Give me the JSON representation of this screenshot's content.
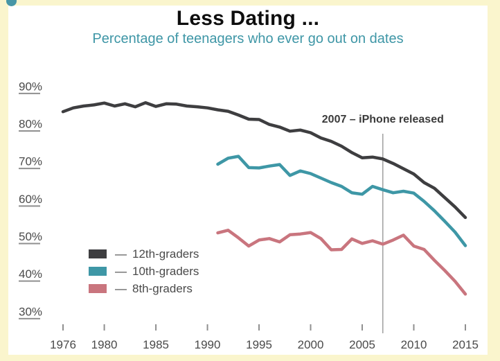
{
  "colors": {
    "background": "#FAF5CD",
    "canvas": "#FFFFFF",
    "title": "#0E0E0E",
    "subtitle": "#3E96A6",
    "axis_text": "#4A4A4A",
    "tick": "#8F8F8F",
    "annotation_line": "#8C8C8C",
    "annotation_text": "#3B3B3B",
    "logo_dot": "#4796A6"
  },
  "legend": {
    "dash": "—",
    "position": "inside-bottom-left"
  },
  "chart_data": {
    "type": "line",
    "title": "Less Dating ...",
    "subtitle": "Percentage of teenagers who ever go out on dates",
    "xlabel": "",
    "ylabel": "",
    "xlim": [
      1976,
      2015
    ],
    "ylim": [
      30,
      90
    ],
    "grid": false,
    "x_ticks": [
      1976,
      1980,
      1985,
      1990,
      1995,
      2000,
      2005,
      2010,
      2015
    ],
    "y_ticks": [
      90,
      80,
      70,
      60,
      50,
      40,
      30
    ],
    "y_tick_labels": [
      "90%",
      "80%",
      "70%",
      "60%",
      "50%",
      "40%",
      "30%"
    ],
    "annotation": {
      "x": 2007,
      "label": "2007 – iPhone released"
    },
    "series": [
      {
        "name": "12th-graders",
        "color": "#3E3E40",
        "x_start": 1976,
        "x_step": 1,
        "values": [
          83.2,
          84.2,
          84.7,
          85.0,
          85.5,
          84.7,
          85.3,
          84.5,
          85.6,
          84.6,
          85.3,
          85.2,
          84.7,
          84.5,
          84.2,
          83.7,
          83.3,
          82.3,
          81.2,
          81.1,
          79.8,
          79.1,
          78.0,
          78.3,
          77.6,
          76.2,
          75.3,
          74.0,
          72.3,
          70.9,
          71.1,
          70.6,
          69.4,
          68.0,
          66.6,
          64.3,
          62.8,
          60.3,
          57.8,
          55.0
        ]
      },
      {
        "name": "10th-graders",
        "color": "#3E97A6",
        "x_start": 1991,
        "x_step": 1,
        "values": [
          69.2,
          70.8,
          71.3,
          68.3,
          68.2,
          68.7,
          69.1,
          66.2,
          67.4,
          66.7,
          65.5,
          64.3,
          63.3,
          61.6,
          61.2,
          63.3,
          62.4,
          61.6,
          62.0,
          61.5,
          59.3,
          56.8,
          54.0,
          51.1,
          47.5
        ]
      },
      {
        "name": "8th-graders",
        "color": "#C9757E",
        "x_start": 1991,
        "x_step": 1,
        "values": [
          50.9,
          51.6,
          49.6,
          47.4,
          49.0,
          49.4,
          48.5,
          50.4,
          50.6,
          51.0,
          49.4,
          46.4,
          46.5,
          49.3,
          48.1,
          48.8,
          47.9,
          49.0,
          50.3,
          47.4,
          46.5,
          43.6,
          40.9,
          38.0,
          34.6
        ]
      }
    ]
  }
}
